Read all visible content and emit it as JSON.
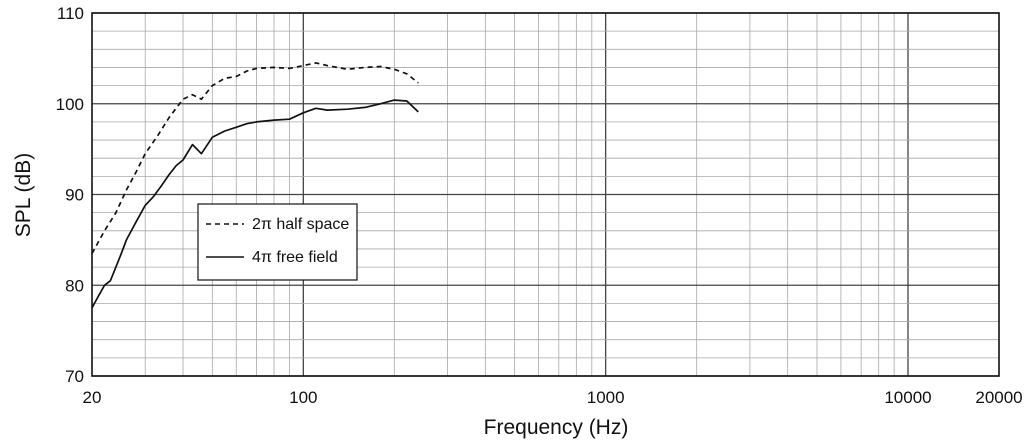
{
  "chart_data": {
    "type": "line",
    "xlabel": "Frequency (Hz)",
    "ylabel": "SPL (dB)",
    "x_scale": "log",
    "xlim": [
      20,
      20000
    ],
    "ylim": [
      70,
      110
    ],
    "x_ticks": [
      20,
      100,
      1000,
      10000,
      20000
    ],
    "x_tick_labels": [
      "20",
      "100",
      "1000",
      "10000",
      "20000"
    ],
    "y_ticks": [
      70,
      80,
      90,
      100,
      110
    ],
    "y_tick_labels": [
      "70",
      "80",
      "90",
      "100",
      "110"
    ],
    "grid": true,
    "legend_position": "center-left",
    "series": [
      {
        "name": "2π half space",
        "style": "dashed",
        "color": "#111111",
        "x": [
          20,
          22,
          24,
          26,
          28,
          30,
          33,
          36,
          40,
          43,
          46,
          50,
          55,
          60,
          65,
          70,
          80,
          90,
          100,
          110,
          120,
          140,
          160,
          180,
          200,
          220,
          240
        ],
        "y": [
          83.5,
          86,
          88,
          90.5,
          92.5,
          94.5,
          96.5,
          98.5,
          100.5,
          101,
          100.5,
          102,
          102.8,
          103,
          103.6,
          103.9,
          104,
          103.9,
          104.2,
          104.5,
          104.2,
          103.8,
          104,
          104.1,
          103.8,
          103.3,
          102.3
        ]
      },
      {
        "name": "4π free field",
        "style": "solid",
        "color": "#111111",
        "x": [
          20,
          21,
          22,
          23,
          24,
          25,
          26,
          28,
          30,
          32,
          34,
          36,
          38,
          40,
          43,
          46,
          50,
          55,
          60,
          65,
          70,
          80,
          90,
          100,
          110,
          120,
          140,
          160,
          180,
          200,
          220,
          240
        ],
        "y": [
          77.5,
          78.8,
          80,
          80.5,
          82,
          83.5,
          85,
          87,
          88.8,
          89.8,
          91,
          92.2,
          93.2,
          93.8,
          95.5,
          94.5,
          96.3,
          97,
          97.4,
          97.8,
          98,
          98.2,
          98.3,
          99,
          99.5,
          99.3,
          99.4,
          99.6,
          100,
          100.4,
          100.3,
          99.1
        ]
      }
    ]
  }
}
